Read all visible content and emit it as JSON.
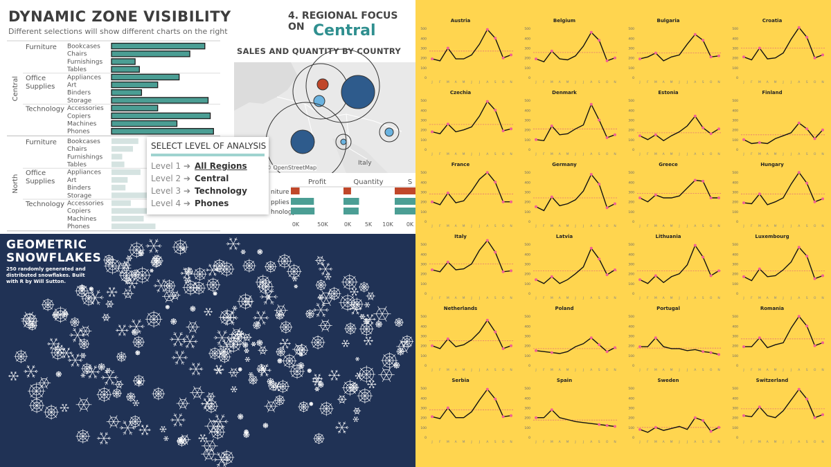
{
  "tableau": {
    "title": "DYNAMIC ZONE VISIBILITY",
    "subtitle": "Different selections will show different charts on the right",
    "focus_heading": "4. REGIONAL FOCUS ON",
    "focus_region": "Central",
    "map_title": "SALES AND QUANTITY BY COUNTRY",
    "map_credit": "© OpenStreetMap",
    "map_label_italy": "Italy",
    "popup": {
      "heading": "SELECT LEVEL OF ANALYSIS",
      "levels": [
        {
          "prefix": "Level 1 ➔",
          "label": "All Regions"
        },
        {
          "prefix": "Level 2 ➔",
          "label": "Central"
        },
        {
          "prefix": "Level 3 ➔",
          "label": "Technology"
        },
        {
          "prefix": "Level 4 ➔",
          "label": "Phones"
        }
      ]
    },
    "colors": {
      "teal": "#4b9e94",
      "pale": "#d5e3e1",
      "orange": "#c0472a",
      "navy": "#2e5b8c",
      "light_blue": "#6bb3e0"
    }
  },
  "snowflakes": {
    "title_line1": "GEOMETRIC",
    "title_line2": "SNOWFLAKES",
    "subtitle": "250 randomly generated and distributed snowflakes. Built with R by Will Sutton."
  },
  "chart_data": [
    {
      "type": "bar",
      "title": "DYNAMIC ZONE VISIBILITY",
      "groups": [
        {
          "region": "Central",
          "categories": [
            {
              "name": "Furniture",
              "subs": [
                {
                  "name": "Bookcases",
                  "value": 0.87
                },
                {
                  "name": "Chairs",
                  "value": 0.73
                },
                {
                  "name": "Furnishings",
                  "value": 0.22
                },
                {
                  "name": "Tables",
                  "value": 0.26
                }
              ]
            },
            {
              "name": "Office Supplies",
              "subs": [
                {
                  "name": "Appliances",
                  "value": 0.63
                },
                {
                  "name": "Art",
                  "value": 0.43
                },
                {
                  "name": "Binders",
                  "value": 0.28
                },
                {
                  "name": "Storage",
                  "value": 0.9
                }
              ]
            },
            {
              "name": "Technology",
              "subs": [
                {
                  "name": "Accessories",
                  "value": 0.43
                },
                {
                  "name": "Copiers",
                  "value": 0.92
                },
                {
                  "name": "Machines",
                  "value": 0.61
                },
                {
                  "name": "Phones",
                  "value": 0.95
                }
              ]
            }
          ]
        },
        {
          "region": "North",
          "categories": [
            {
              "name": "Furniture",
              "subs": [
                {
                  "name": "Bookcases",
                  "value": 0.25
                },
                {
                  "name": "Chairs",
                  "value": 0.2
                },
                {
                  "name": "Furnishings",
                  "value": 0.1
                },
                {
                  "name": "Tables",
                  "value": 0.12
                }
              ]
            },
            {
              "name": "Office Supplies",
              "subs": [
                {
                  "name": "Appliances",
                  "value": 0.27
                },
                {
                  "name": "Art",
                  "value": 0.15
                },
                {
                  "name": "Binders",
                  "value": 0.13
                },
                {
                  "name": "Storage",
                  "value": 0.35
                }
              ]
            },
            {
              "name": "Technology",
              "subs": [
                {
                  "name": "Accessories",
                  "value": 0.18
                },
                {
                  "name": "Copiers",
                  "value": 0.33
                },
                {
                  "name": "Machines",
                  "value": 0.3
                },
                {
                  "name": "Phones",
                  "value": 0.41
                }
              ]
            }
          ]
        }
      ]
    },
    {
      "type": "bar",
      "headers": [
        "Profit",
        "Quantity",
        "S"
      ],
      "rows": [
        "niture",
        "pplies",
        "hnology"
      ],
      "axis_labels": [
        "0K",
        "50K",
        "0K",
        "5K",
        "10K",
        "0K"
      ],
      "profit": [
        14,
        37,
        38
      ],
      "quantity": [
        3.5,
        7.2,
        7.0
      ]
    },
    {
      "type": "line",
      "x": [
        "J",
        "F",
        "M",
        "A",
        "M",
        "J",
        "J",
        "A",
        "S",
        "O",
        "N"
      ],
      "yticks": [
        0,
        100,
        200,
        300,
        400,
        500
      ],
      "series": [
        {
          "name": "Austria",
          "values": [
            190,
            170,
            300,
            190,
            190,
            230,
            340,
            490,
            400,
            200,
            230
          ],
          "ref": 270
        },
        {
          "name": "Belgium",
          "values": [
            190,
            160,
            270,
            190,
            180,
            220,
            320,
            460,
            380,
            170,
            200
          ],
          "ref": 255
        },
        {
          "name": "Bulgaria",
          "values": [
            190,
            210,
            250,
            170,
            210,
            230,
            340,
            440,
            380,
            210,
            220
          ],
          "ref": 250
        },
        {
          "name": "Croatia",
          "values": [
            210,
            180,
            300,
            190,
            200,
            250,
            390,
            510,
            410,
            200,
            230
          ],
          "ref": 300
        },
        {
          "name": "Czechia",
          "values": [
            180,
            160,
            260,
            180,
            200,
            230,
            340,
            490,
            400,
            190,
            210
          ],
          "ref": 255
        },
        {
          "name": "Denmark",
          "values": [
            100,
            90,
            240,
            150,
            160,
            210,
            250,
            460,
            300,
            120,
            150
          ],
          "ref": 210
        },
        {
          "name": "Estonia",
          "values": [
            140,
            100,
            150,
            90,
            140,
            180,
            240,
            340,
            220,
            160,
            210
          ],
          "ref": 170
        },
        {
          "name": "Finland",
          "values": [
            100,
            60,
            70,
            60,
            110,
            140,
            170,
            270,
            210,
            110,
            200
          ],
          "ref": 150
        },
        {
          "name": "France",
          "values": [
            200,
            170,
            290,
            190,
            210,
            310,
            430,
            500,
            400,
            200,
            200
          ],
          "ref": 280
        },
        {
          "name": "Germany",
          "values": [
            150,
            110,
            250,
            160,
            180,
            220,
            310,
            480,
            380,
            140,
            180
          ],
          "ref": 240
        },
        {
          "name": "Greece",
          "values": [
            240,
            200,
            270,
            240,
            240,
            260,
            340,
            420,
            410,
            240,
            240
          ],
          "ref": 285
        },
        {
          "name": "Hungary",
          "values": [
            190,
            180,
            280,
            170,
            200,
            240,
            380,
            500,
            390,
            200,
            230
          ],
          "ref": 280
        },
        {
          "name": "Italy",
          "values": [
            240,
            220,
            320,
            240,
            250,
            300,
            440,
            540,
            420,
            220,
            230
          ],
          "ref": 300
        },
        {
          "name": "Latvia",
          "values": [
            140,
            100,
            170,
            100,
            140,
            200,
            270,
            460,
            350,
            190,
            240
          ],
          "ref": 230
        },
        {
          "name": "Lithuania",
          "values": [
            140,
            100,
            180,
            110,
            170,
            200,
            290,
            490,
            370,
            180,
            230
          ],
          "ref": 230
        },
        {
          "name": "Luxembourg",
          "values": [
            170,
            130,
            250,
            170,
            180,
            240,
            320,
            470,
            380,
            150,
            180
          ],
          "ref": 230
        },
        {
          "name": "Netherlands",
          "values": [
            200,
            170,
            270,
            190,
            210,
            260,
            340,
            460,
            340,
            170,
            200
          ],
          "ref": 250
        },
        {
          "name": "Poland",
          "values": [
            150,
            140,
            130,
            120,
            140,
            190,
            220,
            280,
            210,
            140,
            180
          ],
          "ref": 170
        },
        {
          "name": "Portugal",
          "values": [
            190,
            190,
            280,
            190,
            170,
            170,
            150,
            160,
            140,
            130,
            110
          ],
          "ref": 175
        },
        {
          "name": "Romania",
          "values": [
            190,
            190,
            280,
            180,
            210,
            230,
            380,
            500,
            400,
            200,
            230
          ],
          "ref": 270
        },
        {
          "name": "Serbia",
          "values": [
            210,
            190,
            300,
            200,
            200,
            260,
            380,
            490,
            390,
            210,
            220
          ],
          "ref": 280
        },
        {
          "name": "Spain",
          "values": [
            200,
            200,
            280,
            200,
            180,
            160,
            150,
            140,
            130,
            120,
            110
          ],
          "ref": 175
        },
        {
          "name": "Sweden",
          "values": [
            80,
            50,
            100,
            70,
            90,
            110,
            80,
            200,
            170,
            60,
            100
          ],
          "ref": 100
        },
        {
          "name": "Switzerland",
          "values": [
            220,
            210,
            310,
            220,
            200,
            270,
            380,
            490,
            390,
            200,
            230
          ],
          "ref": 290
        }
      ]
    }
  ]
}
